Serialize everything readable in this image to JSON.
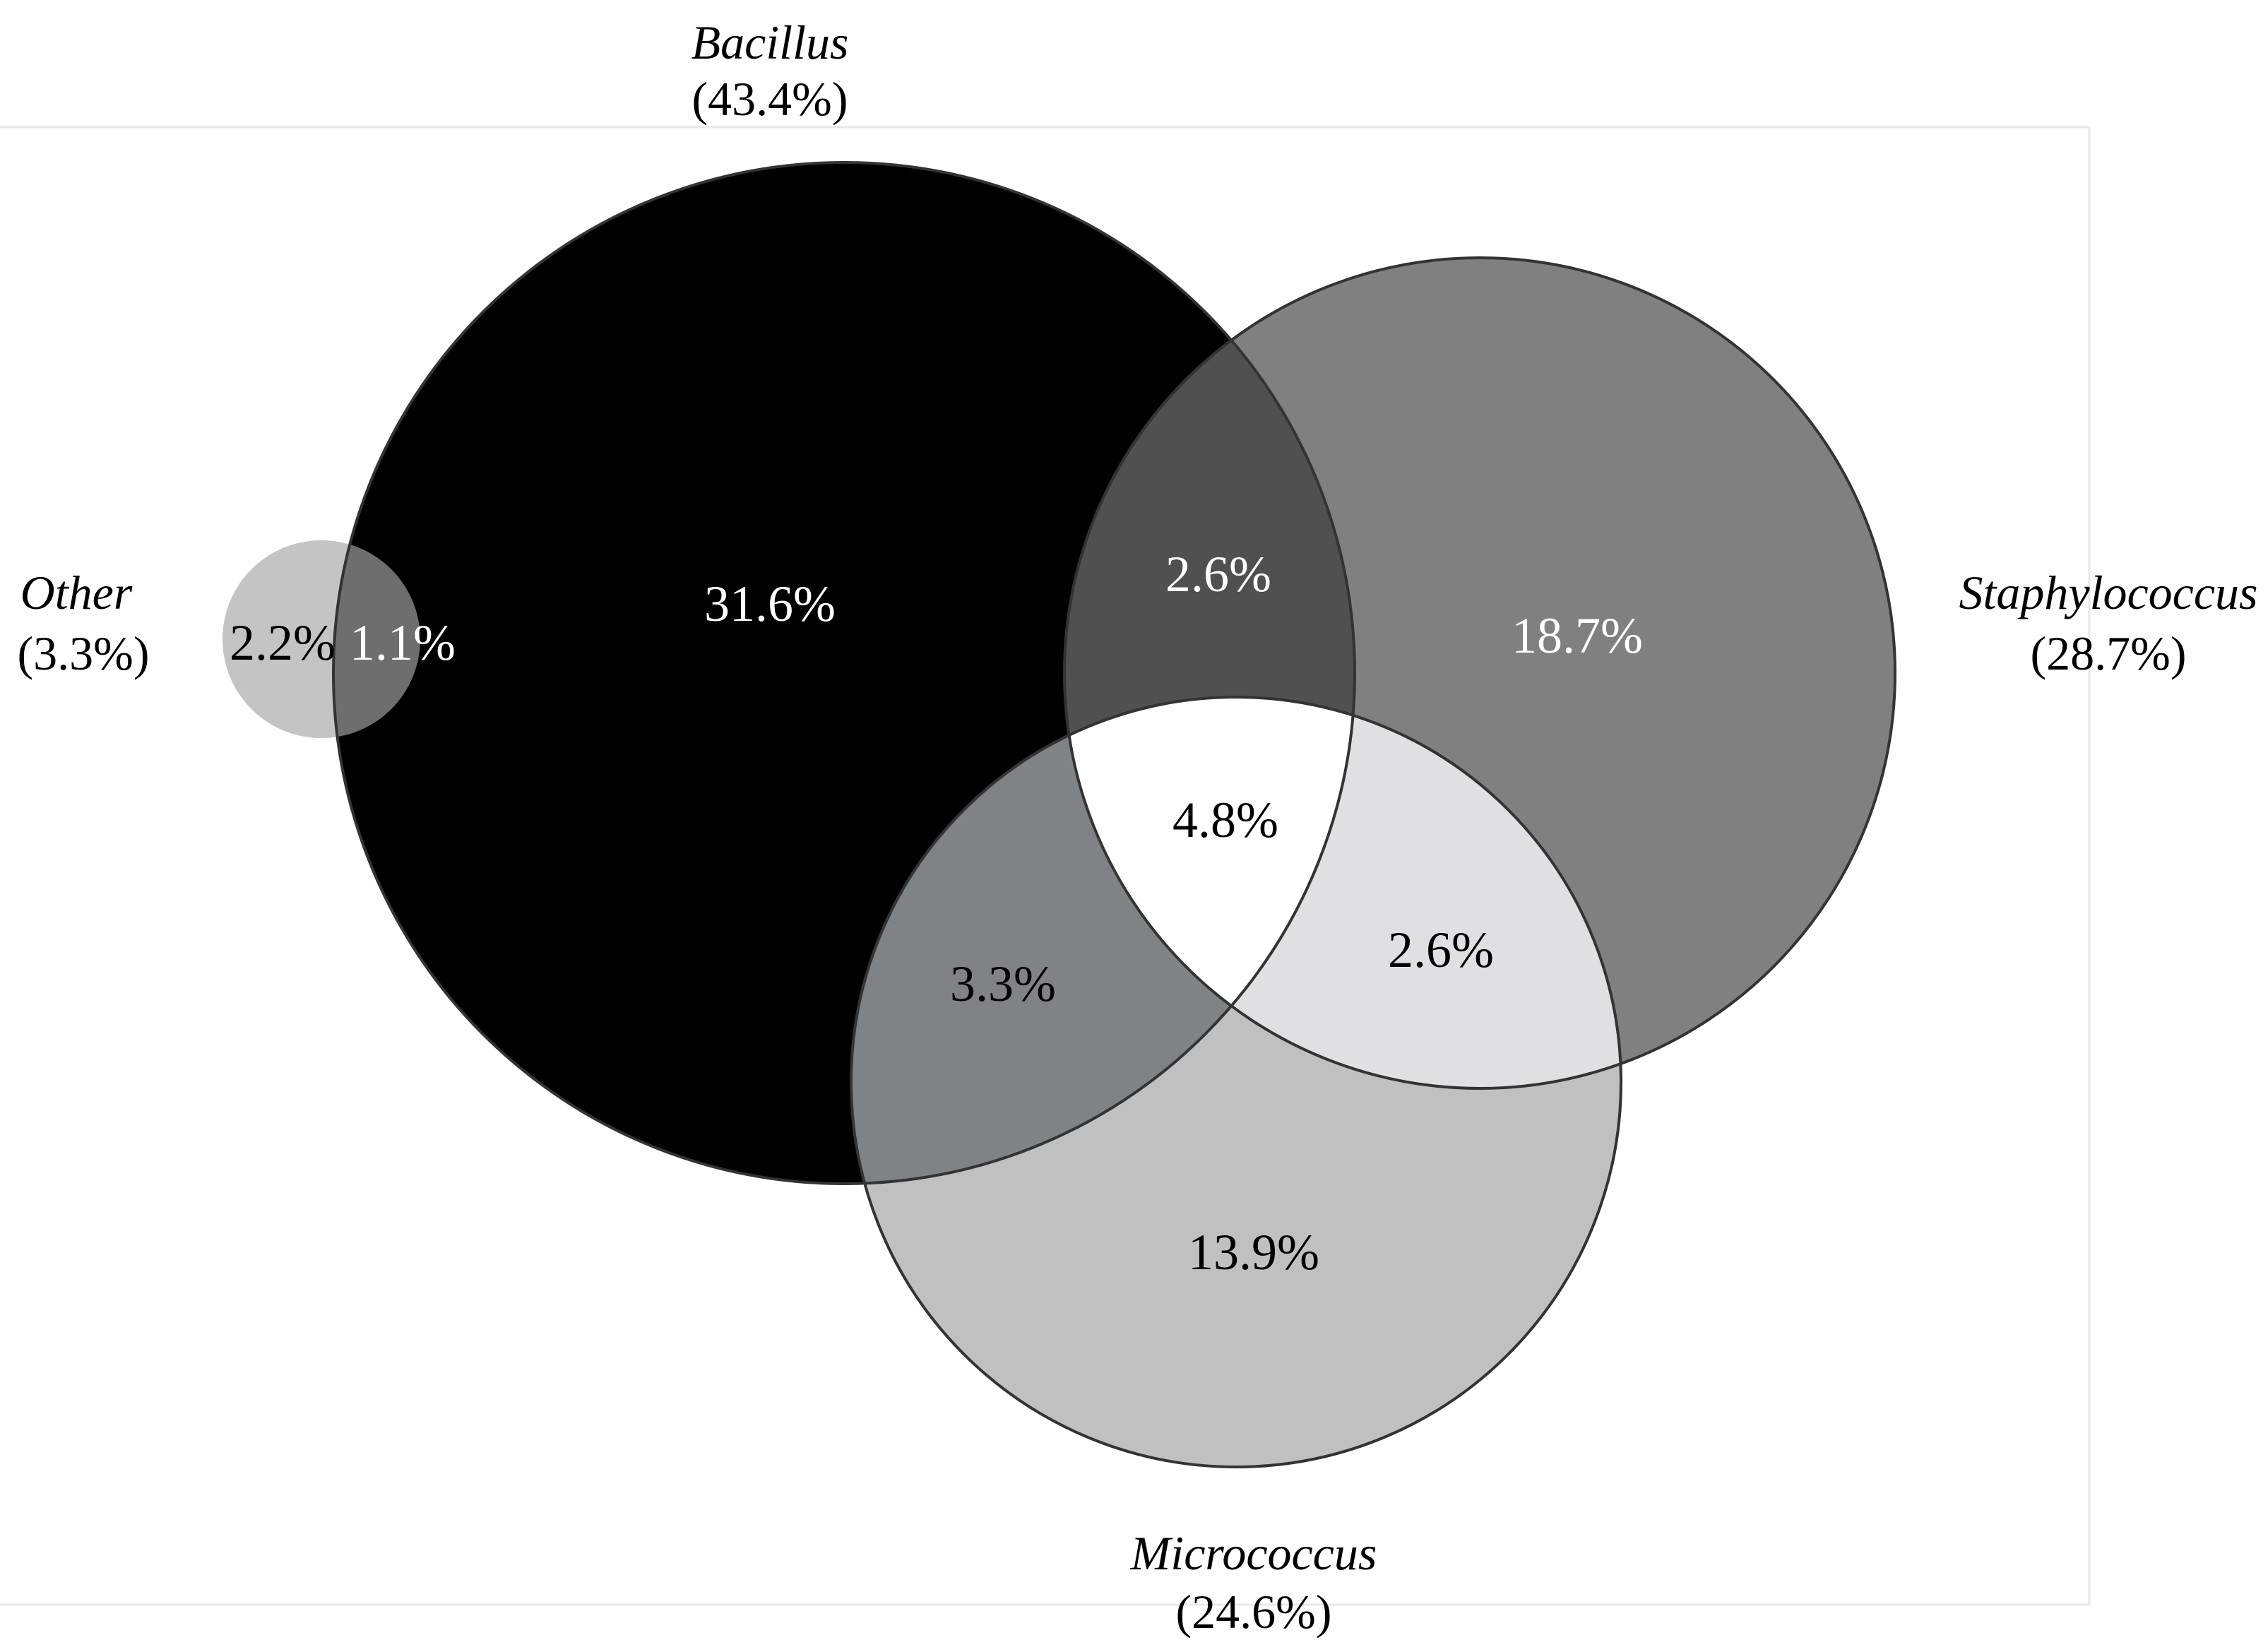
{
  "sets": [
    {
      "id": "bacillus",
      "name": "Bacillus",
      "total": "(43.4%)",
      "color": "#000000"
    },
    {
      "id": "staphylococcus",
      "name": "Staphylococcus",
      "total": "(28.7%)",
      "color": "#808080"
    },
    {
      "id": "micrococcus",
      "name": "Micrococcus",
      "total": "(24.6%)",
      "color": "#c0c0c0"
    },
    {
      "id": "other",
      "name": "Other",
      "total": "(3.3%)",
      "color": "#c4c4c4"
    }
  ],
  "regions": [
    {
      "id": "other-only",
      "sets": [
        "Other"
      ],
      "value": "2.2%"
    },
    {
      "id": "other-bacillus",
      "sets": [
        "Other",
        "Bacillus"
      ],
      "value": "1.1%"
    },
    {
      "id": "bacillus-only",
      "sets": [
        "Bacillus"
      ],
      "value": "31.6%"
    },
    {
      "id": "bacillus-staphylococcus",
      "sets": [
        "Bacillus",
        "Staphylococcus"
      ],
      "value": "2.6%"
    },
    {
      "id": "staphylococcus-only",
      "sets": [
        "Staphylococcus"
      ],
      "value": "18.7%"
    },
    {
      "id": "all-three",
      "sets": [
        "Bacillus",
        "Staphylococcus",
        "Micrococcus"
      ],
      "value": "4.8%"
    },
    {
      "id": "bacillus-micrococcus",
      "sets": [
        "Bacillus",
        "Micrococcus"
      ],
      "value": "3.3%"
    },
    {
      "id": "staphylococcus-micrococcus",
      "sets": [
        "Staphylococcus",
        "Micrococcus"
      ],
      "value": "2.6%"
    },
    {
      "id": "micrococcus-only",
      "sets": [
        "Micrococcus"
      ],
      "value": "13.9%"
    }
  ],
  "region_colors": {
    "bacillus_staphylococcus": "#505050",
    "bacillus_micrococcus": "#7f8386",
    "staphylococcus_micrococcus": "#e0e0e2",
    "all_three": "#ffffff",
    "other_bacillus": "#6e6e6e"
  }
}
